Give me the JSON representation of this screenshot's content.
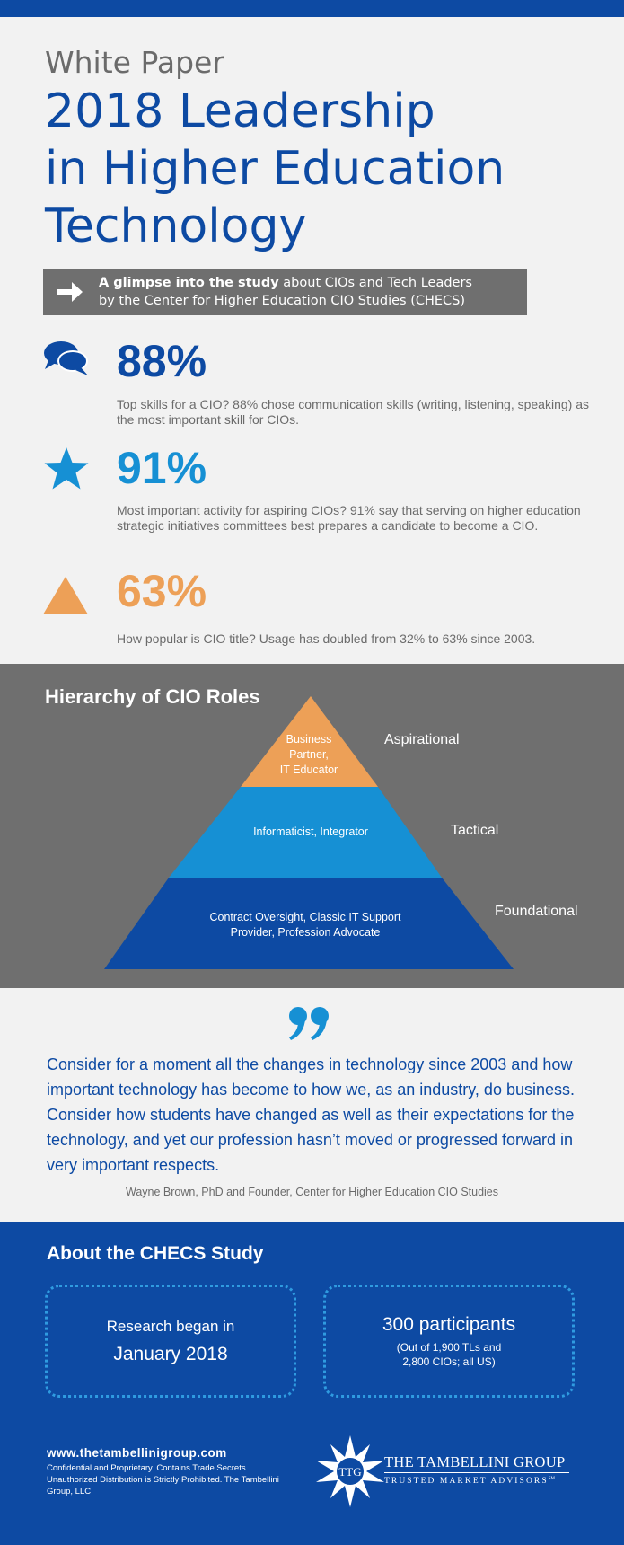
{
  "header": {
    "kicker": "White Paper",
    "title_lines": [
      "2018 Leadership",
      "in Higher Education",
      "Technology"
    ]
  },
  "banner": {
    "bold": "A glimpse into the study",
    "rest_line1": " about CIOs and Tech Leaders",
    "line2": "by the Center for Higher Education CIO Studies (CHECS)"
  },
  "stats": [
    {
      "icon": "speech-bubbles-icon",
      "value": "88%",
      "color": "#0d4aa3",
      "description": "Top skills for a CIO? 88% chose communication skills (writing, listening, speaking) as the most important skill for CIOs."
    },
    {
      "icon": "star-icon",
      "value": "91%",
      "color": "#1690d4",
      "description": "Most important activity for aspiring CIOs? 91% say that serving on higher education strategic initiatives committees best prepares a candidate to become a CIO."
    },
    {
      "icon": "triangle-icon",
      "value": "63%",
      "color": "#eda057",
      "description": "How popular is CIO title? Usage has doubled from 32% to 63% since 2003."
    }
  ],
  "hierarchy": {
    "title": "Hierarchy of CIO Roles",
    "tiers": [
      {
        "name": "Aspirational",
        "roles": [
          "Business",
          "Partner,",
          "IT Educator"
        ],
        "color": "#eda057"
      },
      {
        "name": "Tactical",
        "roles": [
          "Informaticist, Integrator"
        ],
        "color": "#1690d4"
      },
      {
        "name": "Foundational",
        "roles": [
          "Contract Oversight, Classic IT Support",
          "Provider, Profession Advocate"
        ],
        "color": "#0d4aa3"
      }
    ]
  },
  "quote": {
    "text": "Consider for a moment all the changes in technology since 2003 and how important technology has become to how we, as an industry, do business. Consider how students have changed as well as their expectations for the technology, and yet our profession hasn’t moved or progressed forward in very important respects.",
    "attribution": "Wayne Brown, PhD and Founder, Center for Higher Education CIO Studies"
  },
  "about": {
    "title": "About the CHECS Study",
    "box1": {
      "line1": "Research began in",
      "line2": "January 2018"
    },
    "box2": {
      "line1": "300 participants",
      "line2": "(Out of 1,900 TLs and",
      "line3": "2,800 CIOs; all US)"
    }
  },
  "footer": {
    "url": "www.thetambellinigroup.com",
    "legal": "Confidential and Proprietary. Contains Trade Secrets. Unauthorized Distribution is Strictly Prohibited. The Tambellini Group, LLC.",
    "logo_monogram": "TTG",
    "logo_name": "THE TAMBELLINI GROUP",
    "logo_tagline": "TRUSTED MARKET ADVISORS",
    "logo_mark": "SM"
  }
}
